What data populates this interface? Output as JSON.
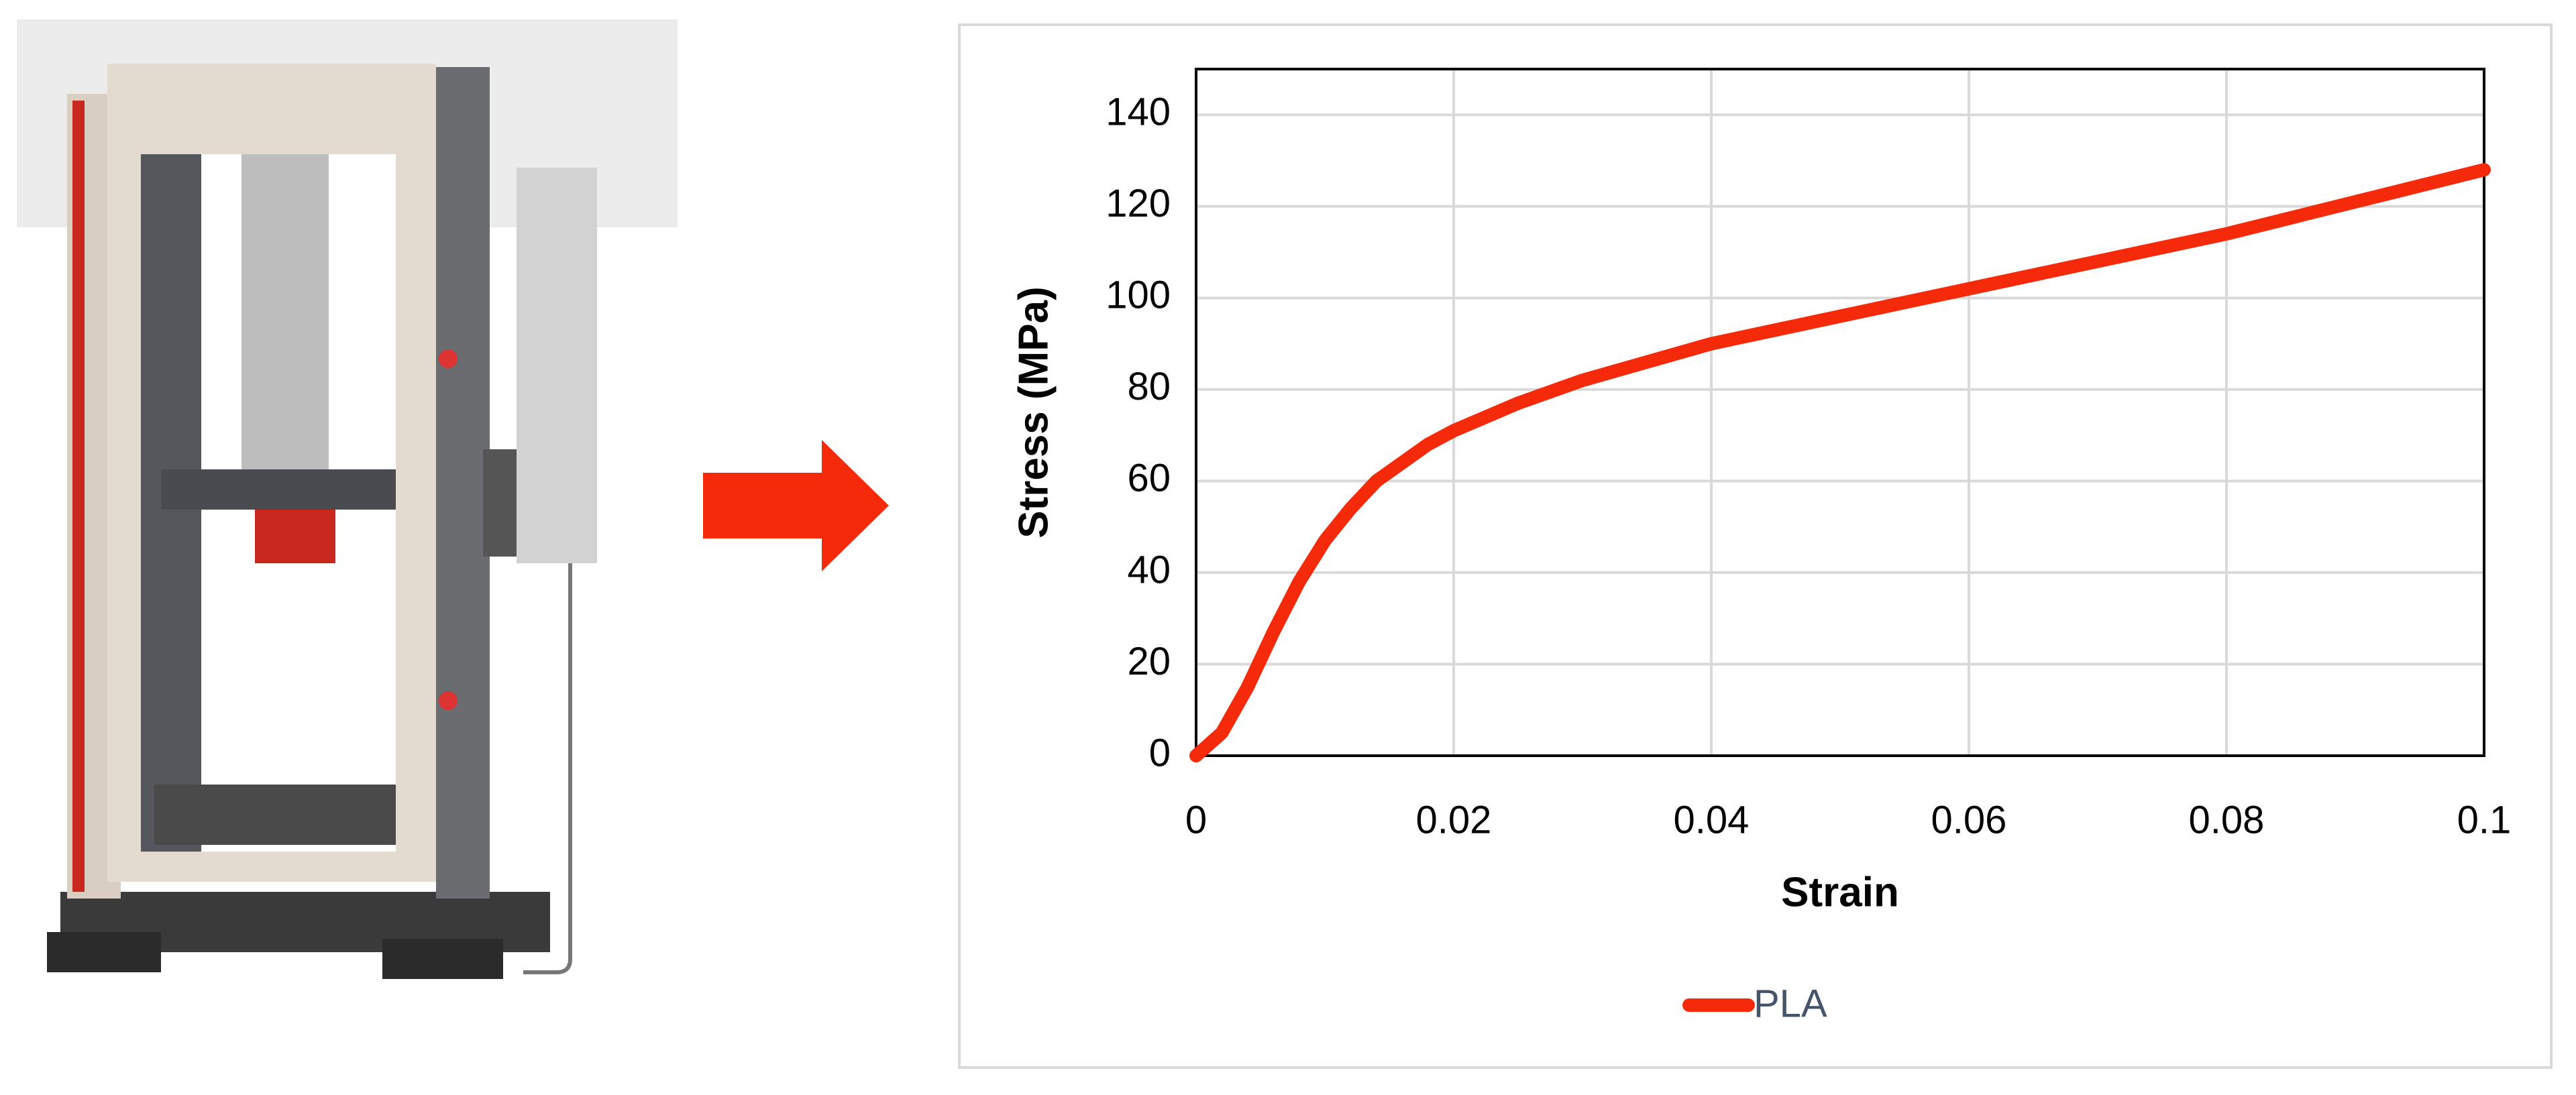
{
  "chart_data": {
    "type": "line",
    "xlabel": "Strain",
    "ylabel": "Stress (MPa)",
    "x": [
      0,
      0.002,
      0.004,
      0.006,
      0.008,
      0.01,
      0.012,
      0.014,
      0.016,
      0.018,
      0.02,
      0.025,
      0.03,
      0.035,
      0.04,
      0.05,
      0.06,
      0.07,
      0.08,
      0.09,
      0.1
    ],
    "series": [
      {
        "name": "PLA",
        "color": "#f52a0a",
        "values": [
          0,
          5,
          15,
          27,
          38,
          47,
          54,
          60,
          64,
          68,
          71,
          77,
          82,
          86,
          90,
          96,
          102,
          108,
          114,
          121,
          128
        ]
      }
    ],
    "xlim": [
      0,
      0.1
    ],
    "ylim": [
      0,
      150
    ],
    "xticks": [
      0,
      0.02,
      0.04,
      0.06,
      0.08,
      0.1
    ],
    "yticks": [
      0,
      20,
      40,
      60,
      80,
      100,
      120,
      140
    ],
    "grid": true,
    "legend": "bottom"
  }
}
